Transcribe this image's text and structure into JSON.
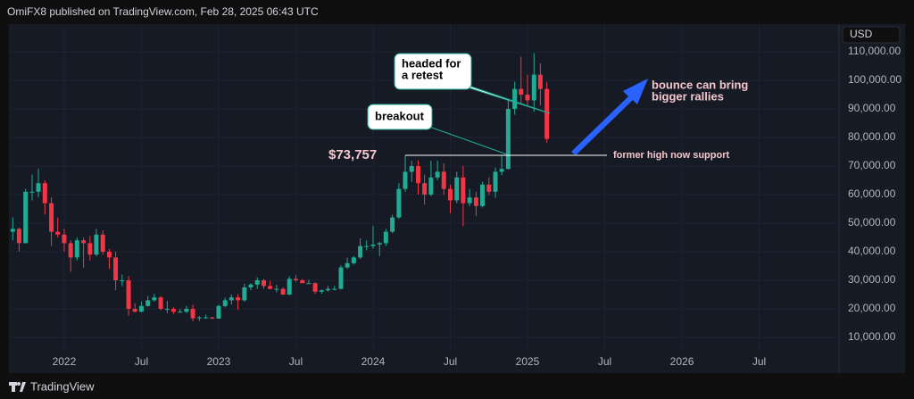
{
  "header": "OmiFX8 published on TradingView.com, Feb 28, 2025 06:43 UTC",
  "footer": "TradingView",
  "chart_data": {
    "type": "candlestick",
    "currency": "USD",
    "up_color": "#22ab94",
    "down_color": "#f23645",
    "grid": true,
    "x": [
      2021.667,
      2021.708,
      2021.75,
      2021.792,
      2021.833,
      2021.875,
      2021.917,
      2021.958,
      2022,
      2022.042,
      2022.083,
      2022.125,
      2022.167,
      2022.208,
      2022.25,
      2022.292,
      2022.333,
      2022.375,
      2022.417,
      2022.458,
      2022.5,
      2022.542,
      2022.583,
      2022.625,
      2022.667,
      2022.708,
      2022.75,
      2022.792,
      2022.833,
      2022.875,
      2022.917,
      2022.958,
      2023,
      2023.042,
      2023.083,
      2023.125,
      2023.167,
      2023.208,
      2023.25,
      2023.292,
      2023.333,
      2023.375,
      2023.417,
      2023.458,
      2023.5,
      2023.542,
      2023.583,
      2023.625,
      2023.667,
      2023.708,
      2023.75,
      2023.792,
      2023.833,
      2023.875,
      2023.917,
      2023.958,
      2024,
      2024.042,
      2024.083,
      2024.125,
      2024.167,
      2024.208,
      2024.25,
      2024.292,
      2024.333,
      2024.375,
      2024.417,
      2024.458,
      2024.5,
      2024.542,
      2024.583,
      2024.625,
      2024.667,
      2024.708,
      2024.75,
      2024.792,
      2024.833,
      2024.875,
      2024.917,
      2024.958,
      2025,
      2025.042,
      2025.083,
      2025.125
    ],
    "open": [
      47000,
      48000,
      43000,
      61000,
      61000,
      64000,
      57000,
      47000,
      46000,
      43000,
      38000,
      44000,
      43000,
      39000,
      46000,
      40000,
      38000,
      30000,
      30000,
      20000,
      19000,
      21000,
      23000,
      24000,
      20000,
      20000,
      19000,
      19000,
      20000,
      16700,
      17000,
      17000,
      16600,
      21000,
      23000,
      24000,
      23000,
      27500,
      28500,
      30000,
      28000,
      27000,
      27000,
      25000,
      30500,
      30000,
      29000,
      29000,
      26000,
      26500,
      27000,
      27000,
      34500,
      36000,
      38000,
      42000,
      42000,
      42500,
      43000,
      47000,
      52000,
      62000,
      68000,
      70000,
      64000,
      60000,
      66000,
      68000,
      62000,
      58000,
      66000,
      57000,
      59000,
      56000,
      63500,
      61000,
      68000,
      69000,
      90000,
      97000,
      95000,
      93000,
      102000,
      97000
    ],
    "high": [
      52000,
      48500,
      62000,
      67000,
      69000,
      65000,
      59000,
      52000,
      48000,
      44000,
      45000,
      45000,
      45500,
      48000,
      47500,
      41000,
      40000,
      32000,
      31500,
      22000,
      22500,
      24500,
      25200,
      24500,
      22800,
      20500,
      20000,
      21000,
      21500,
      17500,
      18000,
      17200,
      21500,
      23900,
      25000,
      25200,
      28800,
      29000,
      31000,
      30500,
      29800,
      28400,
      27500,
      31400,
      31800,
      30400,
      30200,
      29200,
      26800,
      28000,
      28000,
      35200,
      37900,
      38500,
      44700,
      44000,
      49000,
      43500,
      48000,
      53000,
      64000,
      73757,
      71800,
      72000,
      67000,
      71900,
      71900,
      71000,
      63500,
      68000,
      70000,
      62000,
      61000,
      64500,
      66000,
      69500,
      73600,
      93500,
      99500,
      108300,
      102000,
      109500,
      106000,
      99500
    ],
    "low": [
      44000,
      40000,
      43000,
      58000,
      59000,
      53000,
      42000,
      45000,
      40000,
      33000,
      37000,
      34500,
      37000,
      38500,
      39000,
      34000,
      26500,
      28000,
      17600,
      18800,
      18900,
      20800,
      22500,
      19500,
      18500,
      18200,
      18800,
      18500,
      15500,
      15800,
      16500,
      16400,
      16500,
      20500,
      21500,
      19600,
      22500,
      26500,
      27000,
      27000,
      26800,
      25800,
      24800,
      24800,
      29500,
      29000,
      28800,
      25200,
      25300,
      26000,
      26500,
      26800,
      34000,
      35500,
      37500,
      40500,
      41000,
      38500,
      42000,
      46500,
      51500,
      61000,
      64500,
      60000,
      56500,
      59500,
      65000,
      60000,
      53500,
      57000,
      49000,
      56000,
      52500,
      55500,
      59800,
      58900,
      66800,
      68800,
      88000,
      92000,
      91000,
      89000,
      91200,
      78200
    ],
    "close": [
      48000,
      43000,
      61000,
      61000,
      64000,
      57000,
      47000,
      46000,
      43000,
      38000,
      44000,
      43000,
      39000,
      46000,
      40000,
      38000,
      30000,
      30000,
      20000,
      19000,
      21000,
      23000,
      24000,
      20000,
      20000,
      19000,
      19000,
      20000,
      16700,
      17000,
      17000,
      16600,
      21000,
      23000,
      24000,
      23000,
      27500,
      28500,
      30000,
      28000,
      27000,
      27000,
      25000,
      30500,
      30000,
      29000,
      29000,
      26000,
      26500,
      27000,
      27000,
      34500,
      36000,
      38000,
      42000,
      42000,
      42500,
      43000,
      47000,
      52000,
      62000,
      68000,
      70000,
      64000,
      60000,
      66000,
      68000,
      62000,
      58000,
      66000,
      57000,
      59000,
      56000,
      63500,
      61000,
      68000,
      69000,
      90000,
      97000,
      95000,
      93000,
      102000,
      97000,
      79500
    ],
    "xlim": [
      2021.642,
      2027.017
    ],
    "ylim": [
      -2500,
      119700
    ],
    "xticks": [
      2022,
      {
        "value": 2022.5,
        "label": "Jul"
      },
      2023,
      {
        "value": 2023.5,
        "label": "Jul"
      },
      2024,
      {
        "value": 2024.5,
        "label": "Jul"
      },
      2025,
      {
        "value": 2025.5,
        "label": "Jul"
      },
      2026,
      {
        "value": 2026.5,
        "label": "Jul"
      }
    ],
    "yticks": [
      {
        "value": 10000,
        "label": "10,000.00"
      },
      {
        "value": 20000,
        "label": "20,000.00"
      },
      {
        "value": 30000,
        "label": "30,000.00"
      },
      {
        "value": 40000,
        "label": "40,000.00"
      },
      {
        "value": 50000,
        "label": "50,000.00"
      },
      {
        "value": 60000,
        "label": "60,000.00"
      },
      {
        "value": 70000,
        "label": "70,000.00"
      },
      {
        "value": 80000,
        "label": "80,000.00"
      },
      {
        "value": 90000,
        "label": "90,000.00"
      },
      {
        "value": 100000,
        "label": "100,000.00"
      },
      {
        "value": 110000,
        "label": "110,000.00"
      }
    ],
    "support": {
      "value": 73757,
      "label": "$73,757",
      "note": "former high now support"
    },
    "annotations": [
      {
        "text": [
          "headed for",
          "a retest"
        ]
      },
      {
        "text": [
          "breakout"
        ]
      },
      {
        "text": [
          "bounce can bring",
          "bigger rallies"
        ]
      }
    ]
  }
}
